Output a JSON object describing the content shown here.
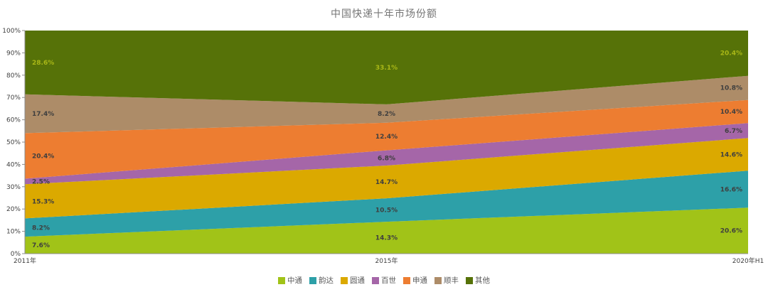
{
  "title": "中国快递十年市场份额",
  "chart_data": {
    "type": "area",
    "stacked": true,
    "percent_stacked": true,
    "title": "中国快递十年市场份额",
    "xlabel": "",
    "ylabel": "",
    "legend_position": "bottom",
    "grid": false,
    "categories": [
      "2011年",
      "2015年",
      "2020年H1"
    ],
    "y_axis": {
      "min": 0,
      "max": 100,
      "step": 10
    },
    "y_ticks": [
      "0%",
      "10%",
      "20%",
      "30%",
      "40%",
      "50%",
      "60%",
      "70%",
      "80%",
      "90%",
      "100%"
    ],
    "series": [
      {
        "name": "中通",
        "color": "#A1C318",
        "label_color": "#3F3F3F",
        "values": [
          7.6,
          14.3,
          20.6
        ]
      },
      {
        "name": "韵达",
        "color": "#2DA0A8",
        "label_color": "#3F3F3F",
        "values": [
          8.2,
          10.5,
          16.6
        ]
      },
      {
        "name": "圆通",
        "color": "#DBA900",
        "label_color": "#3F3F3F",
        "values": [
          15.3,
          14.7,
          14.6
        ]
      },
      {
        "name": "百世",
        "color": "#A566A8",
        "label_color": "#3F3F3F",
        "values": [
          2.5,
          6.8,
          6.7
        ]
      },
      {
        "name": "申通",
        "color": "#ED7D31",
        "label_color": "#3F3F3F",
        "values": [
          20.4,
          12.4,
          10.4
        ]
      },
      {
        "name": "顺丰",
        "color": "#AD8C68",
        "label_color": "#3F3F3F",
        "values": [
          17.4,
          8.2,
          10.8
        ]
      },
      {
        "name": "其他",
        "color": "#567208",
        "label_color": "#A9B717",
        "values": [
          28.6,
          33.1,
          20.4
        ]
      }
    ]
  }
}
